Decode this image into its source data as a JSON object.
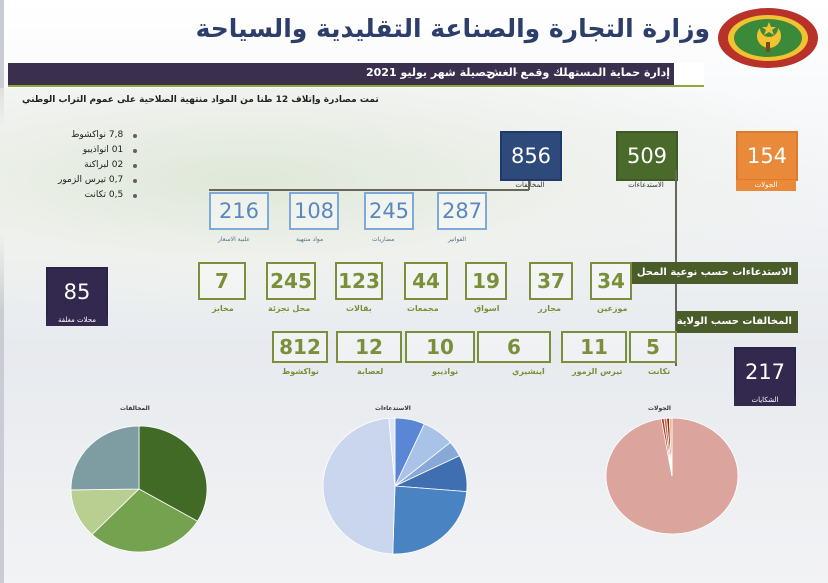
{
  "header": {
    "title": "وزارة التجارة والصناعة التقليدية والسياحة",
    "department": "إدارة حماية المستهلك وقمع الغش",
    "separator": "-",
    "period": "حصيلة شهر يوليو 2021"
  },
  "summary": {
    "seizure_note": "تمت مصادرة وإتلاف 12 طنا من المواد منتهية الصلاحية على عموم التراب الوطني",
    "items": [
      "7,8 نواكشوط",
      "01 انواذيبو",
      "02 لبراكنة",
      "0,7 تيرس الزمور",
      "0,5 تكانت"
    ]
  },
  "kpi": {
    "tours": {
      "value": "154",
      "label": "الجولات"
    },
    "summons": {
      "value": "509",
      "label": "الاستدعاءات"
    },
    "violations": {
      "value": "856",
      "label": "المخالفات"
    },
    "closed_shops": {
      "value": "85",
      "label": "محلات مغلقة"
    },
    "complaints": {
      "value": "217",
      "label": "الشكايات"
    }
  },
  "violation_types": [
    {
      "value": "287",
      "label": "الفواتير"
    },
    {
      "value": "245",
      "label": "مضاربات"
    },
    {
      "value": "108",
      "label": "مواد منتهية"
    },
    {
      "value": "216",
      "label": "علنية الاسعار"
    }
  ],
  "summons_by_place_label": "الاستدعاءات حسب نوعية المحل",
  "summons_by_place": [
    {
      "value": "34",
      "label": "موزعين"
    },
    {
      "value": "37",
      "label": "مجازر"
    },
    {
      "value": "19",
      "label": "اسواق"
    },
    {
      "value": "44",
      "label": "مجمعات"
    },
    {
      "value": "123",
      "label": "بقالات"
    },
    {
      "value": "245",
      "label": "محل تجزئة"
    },
    {
      "value": "7",
      "label": "مخابز"
    }
  ],
  "violations_by_state_label": "المخالفات حسب الولاية",
  "violations_by_state": [
    {
      "value": "5",
      "label": "تكانت"
    },
    {
      "value": "11",
      "label": "تيرس الزمور"
    },
    {
      "value": "6",
      "label": "اينشيري"
    },
    {
      "value": "10",
      "label": "نواذيبو"
    },
    {
      "value": "12",
      "label": "لعصابة"
    },
    {
      "value": "812",
      "label": "نواكشوط"
    }
  ],
  "chart_data": [
    {
      "type": "pie",
      "title": "المخالفات",
      "categories": [
        "الفواتير",
        "مضاربات",
        "مواد منتهية",
        "علنية الاسعار"
      ],
      "values": [
        287,
        245,
        108,
        216
      ],
      "colors": [
        "#406a26",
        "#74a24f",
        "#b9cf92",
        "#7e9da2"
      ]
    },
    {
      "type": "pie",
      "title": "الاستدعاءات",
      "categories": [
        "موزعين",
        "مجازر",
        "اسواق",
        "مجمعات",
        "بقالات",
        "محل تجزئة",
        "مخابز"
      ],
      "values": [
        34,
        37,
        19,
        44,
        123,
        245,
        7
      ],
      "colors": [
        "#5b86d6",
        "#a9c2e8",
        "#88a9d8",
        "#3f6fb0",
        "#4a83c1",
        "#c9d6ee",
        "#dfe6f3"
      ]
    },
    {
      "type": "pie",
      "title": "الجولات",
      "categories": [
        "نواكشوط",
        "انواذيبو",
        "لبراكنة",
        "تيرس الزمور",
        "تكانت"
      ],
      "values": [
        150,
        1,
        1,
        1,
        1
      ],
      "colors": [
        "#dba59d",
        "#b23a2f",
        "#c96a2a",
        "#8a2a1f",
        "#e0b08a"
      ]
    }
  ]
}
